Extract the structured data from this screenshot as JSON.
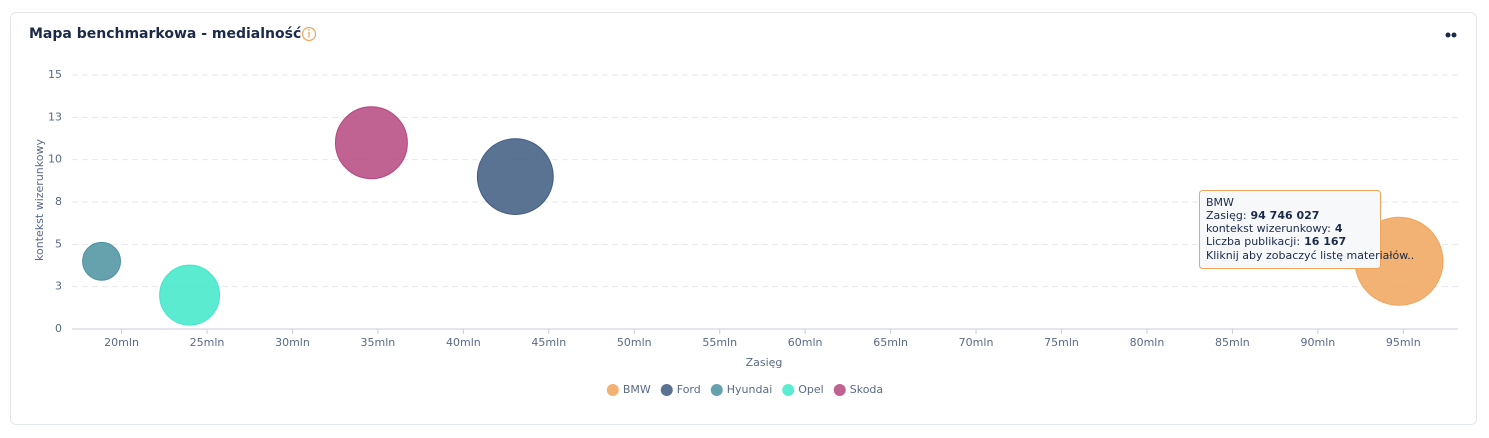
{
  "chart_data": {
    "type": "bubble",
    "title": "Mapa benchmarkowa - medialność",
    "xlabel": "Zasięg",
    "ylabel": "kontekst wizerunkowy",
    "xlim": [
      17100000,
      98200000
    ],
    "ylim": [
      0,
      15
    ],
    "xticks": [
      {
        "value": 20000000,
        "label": "20mln"
      },
      {
        "value": 25000000,
        "label": "25mln"
      },
      {
        "value": 30000000,
        "label": "30mln"
      },
      {
        "value": 35000000,
        "label": "35mln"
      },
      {
        "value": 40000000,
        "label": "40mln"
      },
      {
        "value": 45000000,
        "label": "45mln"
      },
      {
        "value": 50000000,
        "label": "50mln"
      },
      {
        "value": 55000000,
        "label": "55mln"
      },
      {
        "value": 60000000,
        "label": "60mln"
      },
      {
        "value": 65000000,
        "label": "65mln"
      },
      {
        "value": 70000000,
        "label": "70mln"
      },
      {
        "value": 75000000,
        "label": "75mln"
      },
      {
        "value": 80000000,
        "label": "80mln"
      },
      {
        "value": 85000000,
        "label": "85mln"
      },
      {
        "value": 90000000,
        "label": "90mln"
      },
      {
        "value": 95000000,
        "label": "95mln"
      }
    ],
    "yticks": [
      0,
      {
        "value": 2.5,
        "label": "3"
      },
      5,
      {
        "value": 7.5,
        "label": "8"
      },
      10,
      {
        "value": 12.5,
        "label": "13"
      },
      15
    ],
    "grid": true,
    "legend": "bottom",
    "series": [
      {
        "name": "BMW",
        "color": "#f0a45c",
        "x": [
          94746027
        ],
        "values": [
          4
        ],
        "sizes": [
          16167
        ]
      },
      {
        "name": "Ford",
        "color": "#3e5a80",
        "x": [
          43040000
        ],
        "values": [
          9
        ],
        "sizes": [
          12000
        ]
      },
      {
        "name": "Hyundai",
        "color": "#4a92a0",
        "x": [
          18830000
        ],
        "values": [
          4
        ],
        "sizes": [
          3000
        ]
      },
      {
        "name": "Opel",
        "color": "#3ee8c8",
        "x": [
          23980000
        ],
        "values": [
          2
        ],
        "sizes": [
          7500
        ]
      },
      {
        "name": "Skoda",
        "color": "#b5477f",
        "x": [
          34620000
        ],
        "values": [
          11
        ],
        "sizes": [
          10800
        ]
      }
    ],
    "tooltip": {
      "x_label": "Zasięg:",
      "x_value": "94 746 027",
      "y_label": "kontekst wizerunkowy:",
      "size_label": "Liczba publikacji:",
      "size_value": "16 167",
      "note": "Kliknij aby zobaczyć listę materiałów.."
    }
  }
}
